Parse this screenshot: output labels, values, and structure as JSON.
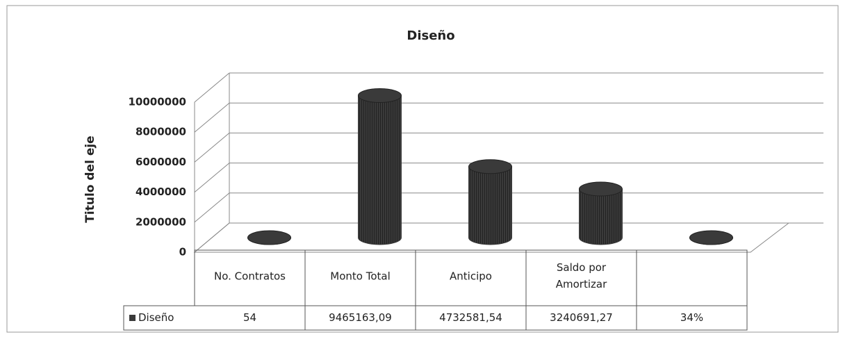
{
  "chart_data": {
    "type": "bar",
    "title": "Diseño",
    "y_label": "Titulo del eje",
    "categories": [
      "No. Contratos",
      "Monto Total",
      "Anticipo",
      "Saldo por Amortizar",
      null
    ],
    "series": [
      {
        "name": "Diseño",
        "color": "#3a3a3a",
        "values": [
          54,
          9465163.09,
          4732581.54,
          3240691.27,
          34
        ],
        "value_labels": [
          "54",
          "9465163,09",
          "4732581,54",
          "3240691,27",
          "34%"
        ]
      }
    ],
    "ylim": [
      0,
      10000000
    ],
    "yticks": [
      0,
      2000000,
      4000000,
      6000000,
      8000000,
      10000000
    ],
    "grid": true
  }
}
